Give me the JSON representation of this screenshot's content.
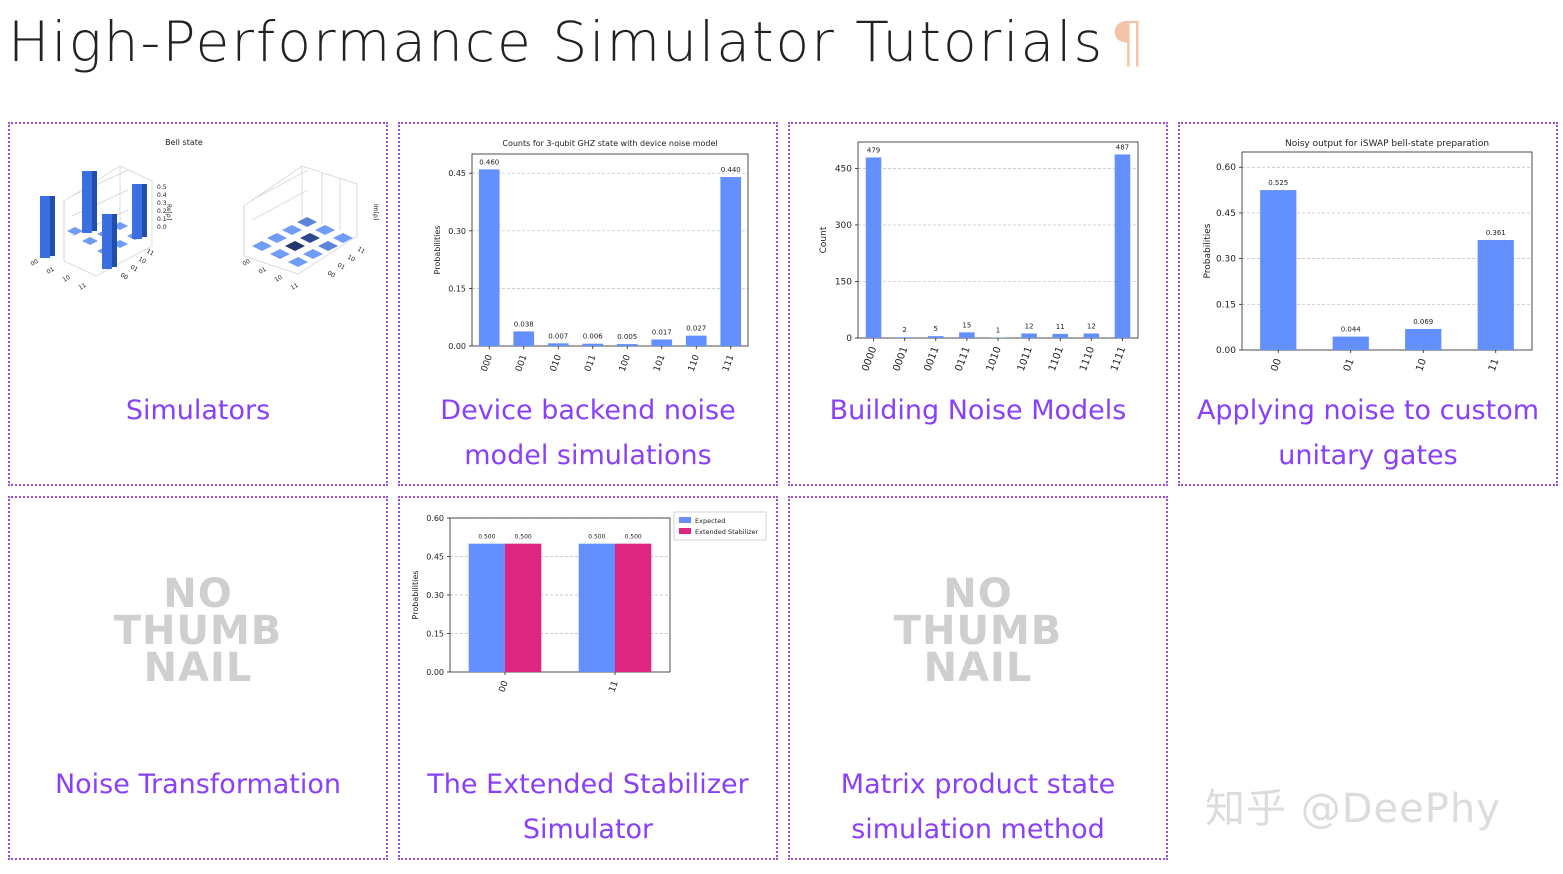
{
  "page": {
    "title": "High-Performance Simulator Tutorials",
    "pilcrow": "¶",
    "watermark": "知乎 @DeePhy",
    "accent_color": "#8a3ffc",
    "bar_color": "#648fff",
    "bar_color_2": "#dc267f"
  },
  "cards": [
    {
      "title": "Simulators",
      "thumb": "bell-state-city-plot"
    },
    {
      "title": "Device backend noise model simulations",
      "thumb": "bar-chart"
    },
    {
      "title": "Building Noise Models",
      "thumb": "bar-chart"
    },
    {
      "title": "Applying noise to custom unitary gates",
      "thumb": "bar-chart"
    },
    {
      "title": "Noise Transformation",
      "thumb": "no-thumbnail"
    },
    {
      "title": "The Extended Stabilizer Simulator",
      "thumb": "bar-chart"
    },
    {
      "title": "Matrix product state simulation method",
      "thumb": "no-thumbnail"
    }
  ],
  "no_thumbnail_text": [
    "NO",
    "THUMB",
    "NAIL"
  ],
  "bell_thumb": {
    "title": "Bell state",
    "left_axis_label": "Re[ρ]",
    "right_axis_label": "Im[ρ]",
    "left_ticks": [
      "0.5",
      "0.4",
      "0.3",
      "0.2",
      "0.1",
      "0.0"
    ],
    "basis": [
      "00",
      "01",
      "10",
      "11"
    ]
  },
  "chart_data": [
    {
      "type": "bar",
      "title": "Counts for 3-qubit GHZ state with device noise model",
      "ylabel": "Probabilities",
      "categories": [
        "000",
        "001",
        "010",
        "011",
        "100",
        "101",
        "110",
        "111"
      ],
      "values": [
        0.46,
        0.038,
        0.007,
        0.006,
        0.005,
        0.017,
        0.027,
        0.44
      ],
      "value_labels": [
        "0.460",
        "0.038",
        "0.007",
        "0.006",
        "0.005",
        "0.017",
        "0.027",
        "0.440"
      ],
      "yticks": [
        "0.00",
        "0.15",
        "0.30",
        "0.45"
      ],
      "ylim": [
        0,
        0.5
      ]
    },
    {
      "type": "bar",
      "title": "",
      "ylabel": "Count",
      "categories": [
        "0000",
        "0001",
        "0011",
        "0111",
        "1010",
        "1011",
        "1101",
        "1110",
        "1111"
      ],
      "values": [
        479,
        2,
        5,
        15,
        1,
        12,
        11,
        12,
        487
      ],
      "value_labels": [
        "479",
        "2",
        "5",
        "15",
        "1",
        "12",
        "11",
        "12",
        "487"
      ],
      "yticks": [
        "0",
        "150",
        "300",
        "450"
      ],
      "ylim": [
        0,
        520
      ]
    },
    {
      "type": "bar",
      "title": "Noisy output for iSWAP bell-state preparation",
      "ylabel": "Probabilities",
      "categories": [
        "00",
        "01",
        "10",
        "11"
      ],
      "values": [
        0.525,
        0.044,
        0.069,
        0.361
      ],
      "value_labels": [
        "0.525",
        "0.044",
        "0.069",
        "0.361"
      ],
      "yticks": [
        "0.00",
        "0.15",
        "0.30",
        "0.45",
        "0.60"
      ],
      "ylim": [
        0,
        0.65
      ]
    },
    {
      "type": "bar",
      "title": "",
      "ylabel": "Probabilities",
      "categories": [
        "00",
        "11"
      ],
      "series": [
        {
          "name": "Expected",
          "values": [
            0.5,
            0.5
          ],
          "value_labels": [
            "0.500",
            "0.500"
          ]
        },
        {
          "name": "Extended Stabilizer",
          "values": [
            0.5,
            0.5
          ],
          "value_labels": [
            "0.500",
            "0.500"
          ]
        }
      ],
      "yticks": [
        "0.00",
        "0.15",
        "0.30",
        "0.45",
        "0.60"
      ],
      "ylim": [
        0,
        0.6
      ],
      "legend": "top-right"
    }
  ]
}
